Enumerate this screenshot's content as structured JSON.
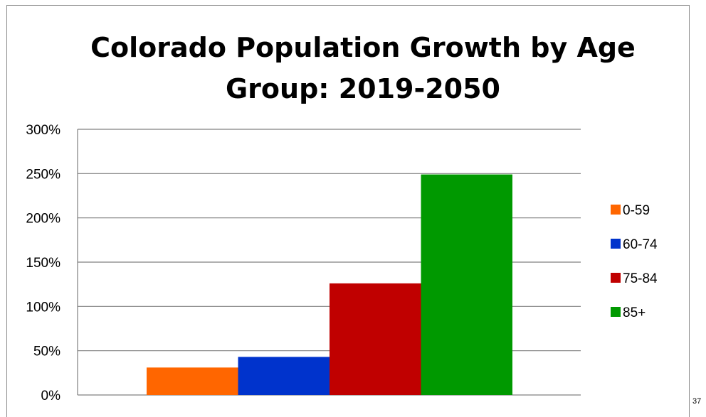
{
  "chart_data": {
    "type": "bar",
    "title": "Colorado Population Growth by Age Group: 2019-2050",
    "categories": [
      "0-59",
      "60-74",
      "75-84",
      "85+"
    ],
    "values": [
      31,
      43,
      126,
      249
    ],
    "colors": [
      "#ff6600",
      "#0033cc",
      "#c00000",
      "#009900"
    ],
    "y_unit": "%",
    "ylim": [
      0,
      300
    ],
    "y_ticks": [
      0,
      50,
      100,
      150,
      200,
      250,
      300
    ],
    "y_tick_labels": [
      "0%",
      "50%",
      "100%",
      "150%",
      "200%",
      "250%",
      "300%"
    ],
    "grid": true,
    "legend": "right",
    "xlabel": "",
    "ylabel": ""
  },
  "page_number": "37"
}
